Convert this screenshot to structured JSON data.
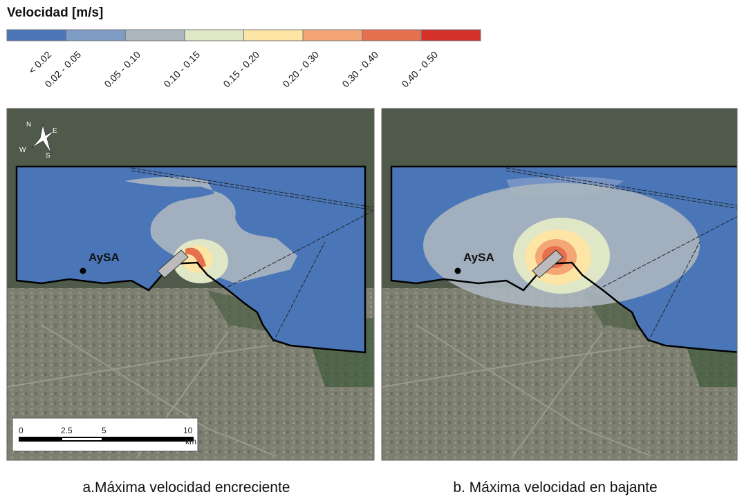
{
  "legend": {
    "title": "Velocidad [m/s]",
    "classes": [
      {
        "label": "< 0.02",
        "color": "#4a76b8"
      },
      {
        "label": "0.02 - 0.05",
        "color": "#7f9cc5"
      },
      {
        "label": "0.05 - 0.10",
        "color": "#abb6bf"
      },
      {
        "label": "0.10 - 0.15",
        "color": "#dfe7c6"
      },
      {
        "label": "0.15 - 0.20",
        "color": "#fde5a6"
      },
      {
        "label": "0.20 - 0.30",
        "color": "#f4a676"
      },
      {
        "label": "0.30 - 0.40",
        "color": "#e6704e"
      },
      {
        "label": "0.40 - 0.50",
        "color": "#d6302a"
      }
    ]
  },
  "panels": [
    {
      "caption": "a.Máxima velocidad encreciente",
      "station_label": "AySA"
    },
    {
      "caption": "b. Máxima velocidad en bajante",
      "station_label": "AySA"
    }
  ],
  "compass": {
    "n": "N",
    "e": "E",
    "w": "W",
    "s": "S"
  },
  "scale_bar": {
    "labels": [
      "0",
      "2.5",
      "5",
      "10"
    ],
    "unit": "km"
  }
}
